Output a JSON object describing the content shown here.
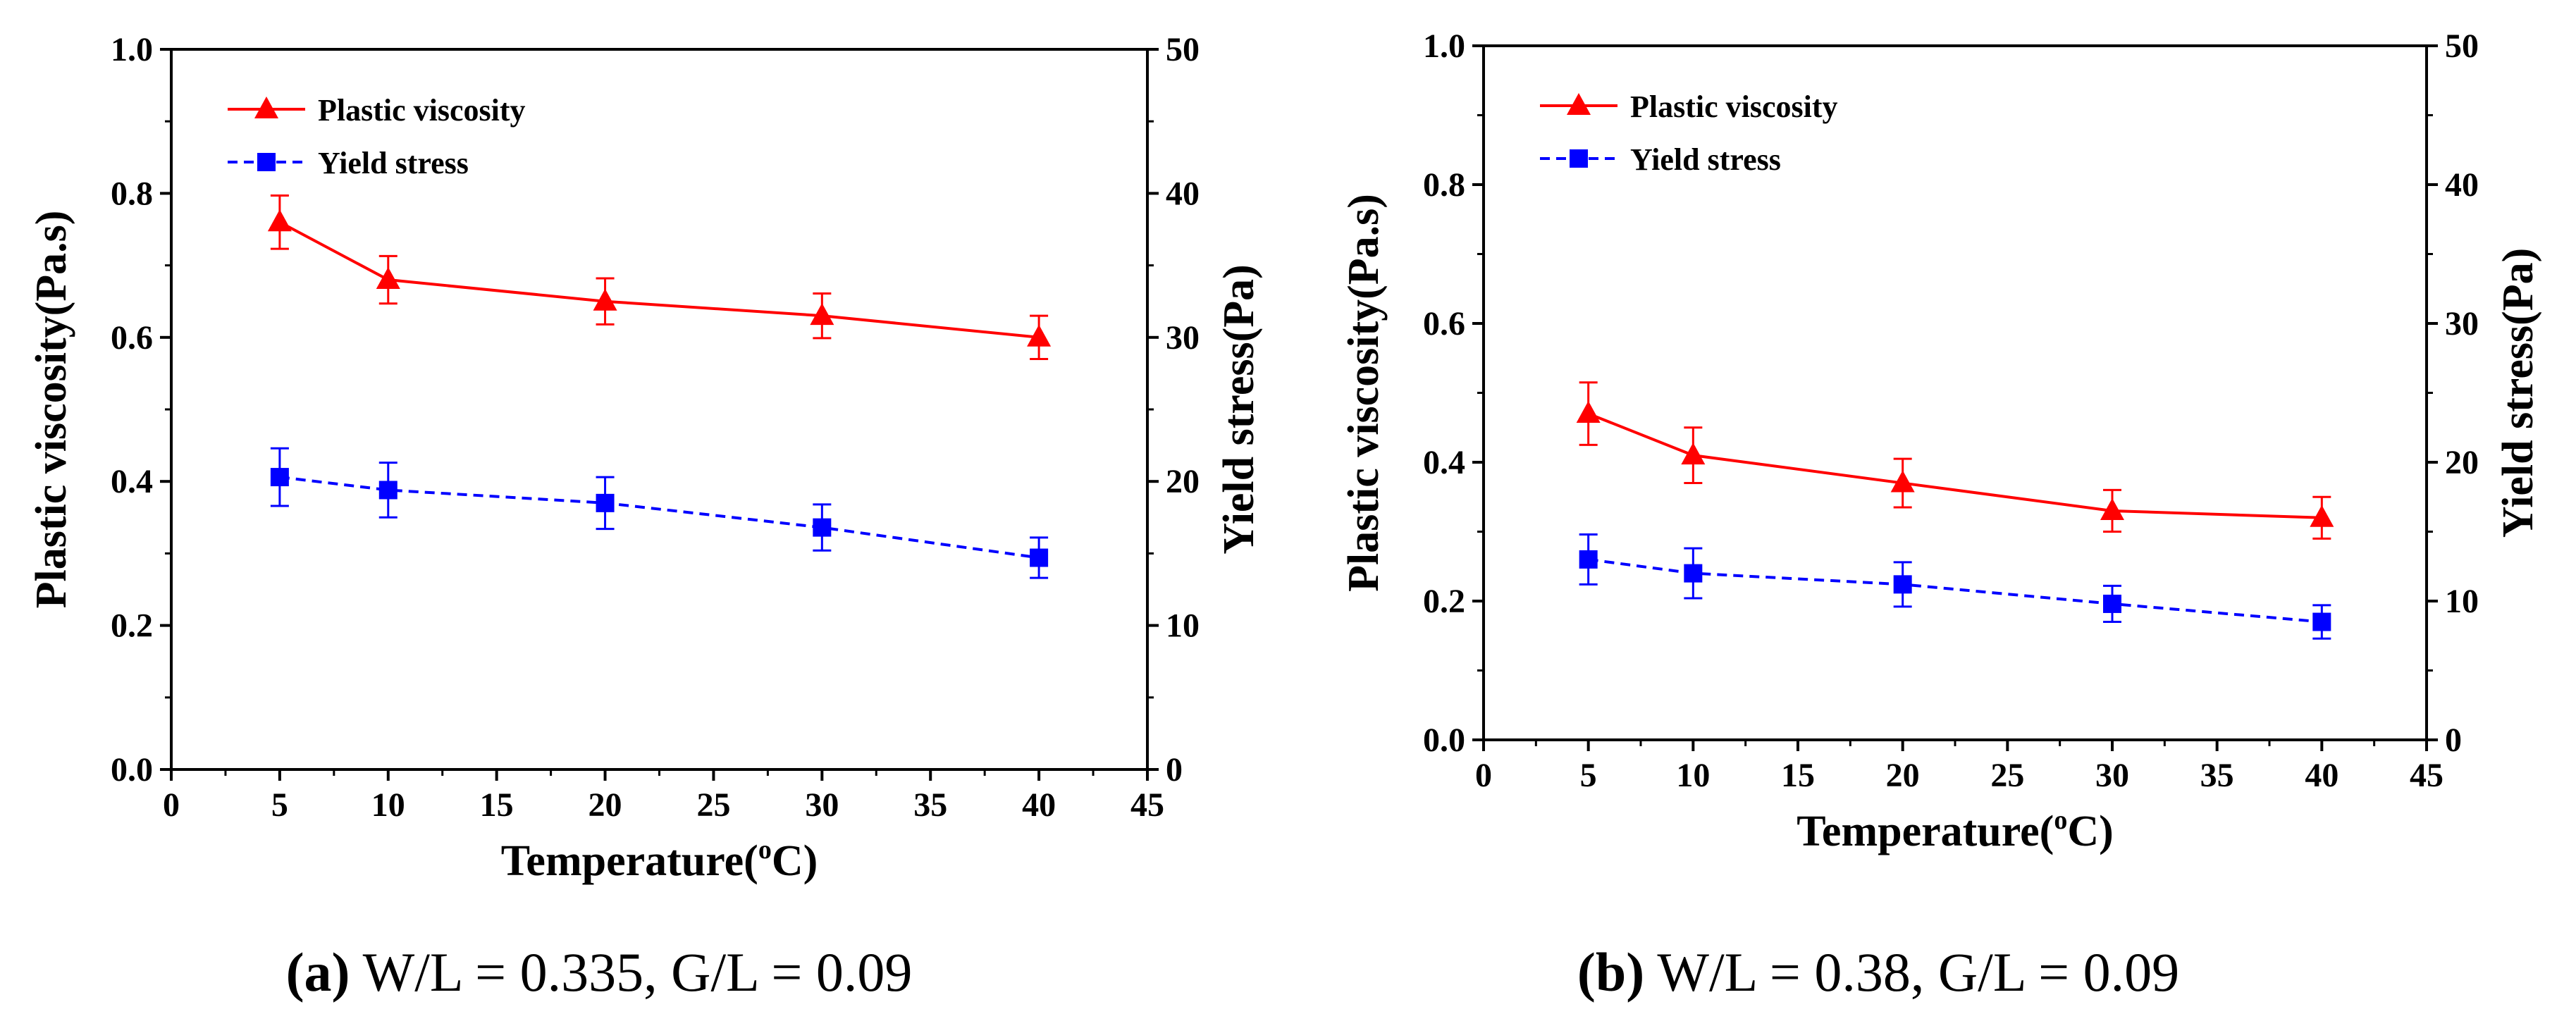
{
  "chart_data": [
    {
      "type": "line",
      "panel": "a",
      "title": "",
      "xlabel": "Temperature(°C)",
      "xlabel_parts": {
        "main": "Temperature(",
        "sup": "o",
        "end": "C)"
      },
      "ylabel_left": "Plastic viscosity(Pa.s)",
      "ylabel_right": "Yield stress(Pa)",
      "xlim": [
        0,
        45
      ],
      "ylim_left": [
        0.0,
        1.0
      ],
      "ylim_right": [
        0,
        50
      ],
      "x_ticks": [
        "0",
        "5",
        "10",
        "15",
        "20",
        "25",
        "30",
        "35",
        "40",
        "45"
      ],
      "y_left_ticks": [
        "0.0",
        "0.2",
        "0.4",
        "0.6",
        "0.8",
        "1.0"
      ],
      "y_right_ticks": [
        "0",
        "10",
        "20",
        "30",
        "40",
        "50"
      ],
      "grid": false,
      "legend_position": "top-left",
      "series": [
        {
          "name": "Plastic viscosity",
          "axis": "left",
          "color": "#ff0000",
          "marker": "triangle",
          "line_style": "solid",
          "x": [
            5,
            10,
            20,
            30,
            40
          ],
          "values": [
            0.76,
            0.68,
            0.65,
            0.63,
            0.6
          ],
          "errors": [
            0.037,
            0.033,
            0.032,
            0.031,
            0.03
          ]
        },
        {
          "name": "Yield stress",
          "axis": "right",
          "color": "#0000ff",
          "marker": "square",
          "line_style": "dashed",
          "x": [
            5,
            10,
            20,
            30,
            40
          ],
          "values": [
            20.3,
            19.4,
            18.5,
            16.8,
            14.7
          ],
          "errors": [
            2.0,
            1.9,
            1.8,
            1.6,
            1.4
          ]
        }
      ]
    },
    {
      "type": "line",
      "panel": "b",
      "title": "",
      "xlabel": "Temperature(°C)",
      "xlabel_parts": {
        "main": "Temperature(",
        "sup": "o",
        "end": "C)"
      },
      "ylabel_left": "Plastic viscosity(Pa.s)",
      "ylabel_right": "Yield stress(Pa)",
      "xlim": [
        0,
        45
      ],
      "ylim_left": [
        0.0,
        1.0
      ],
      "ylim_right": [
        0,
        50
      ],
      "x_ticks": [
        "0",
        "5",
        "10",
        "15",
        "20",
        "25",
        "30",
        "35",
        "40",
        "45"
      ],
      "y_left_ticks": [
        "0.0",
        "0.2",
        "0.4",
        "0.6",
        "0.8",
        "1.0"
      ],
      "y_right_ticks": [
        "0",
        "10",
        "20",
        "30",
        "40",
        "50"
      ],
      "grid": false,
      "legend_position": "top-left",
      "series": [
        {
          "name": "Plastic viscosity",
          "axis": "left",
          "color": "#ff0000",
          "marker": "triangle",
          "line_style": "solid",
          "x": [
            5,
            10,
            20,
            30,
            40
          ],
          "values": [
            0.47,
            0.41,
            0.37,
            0.33,
            0.32
          ],
          "errors": [
            0.045,
            0.04,
            0.035,
            0.03,
            0.03
          ]
        },
        {
          "name": "Yield stress",
          "axis": "right",
          "color": "#0000ff",
          "marker": "square",
          "line_style": "dashed",
          "x": [
            5,
            10,
            20,
            30,
            40
          ],
          "values": [
            13.0,
            12.0,
            11.2,
            9.8,
            8.5
          ],
          "errors": [
            1.8,
            1.8,
            1.6,
            1.3,
            1.2
          ]
        }
      ]
    }
  ],
  "captions": {
    "a": {
      "label": "(a)",
      "text": " W/L = 0.335, G/L = 0.09"
    },
    "b": {
      "label": "(b)",
      "text": " W/L = 0.38, G/L = 0.09"
    }
  }
}
